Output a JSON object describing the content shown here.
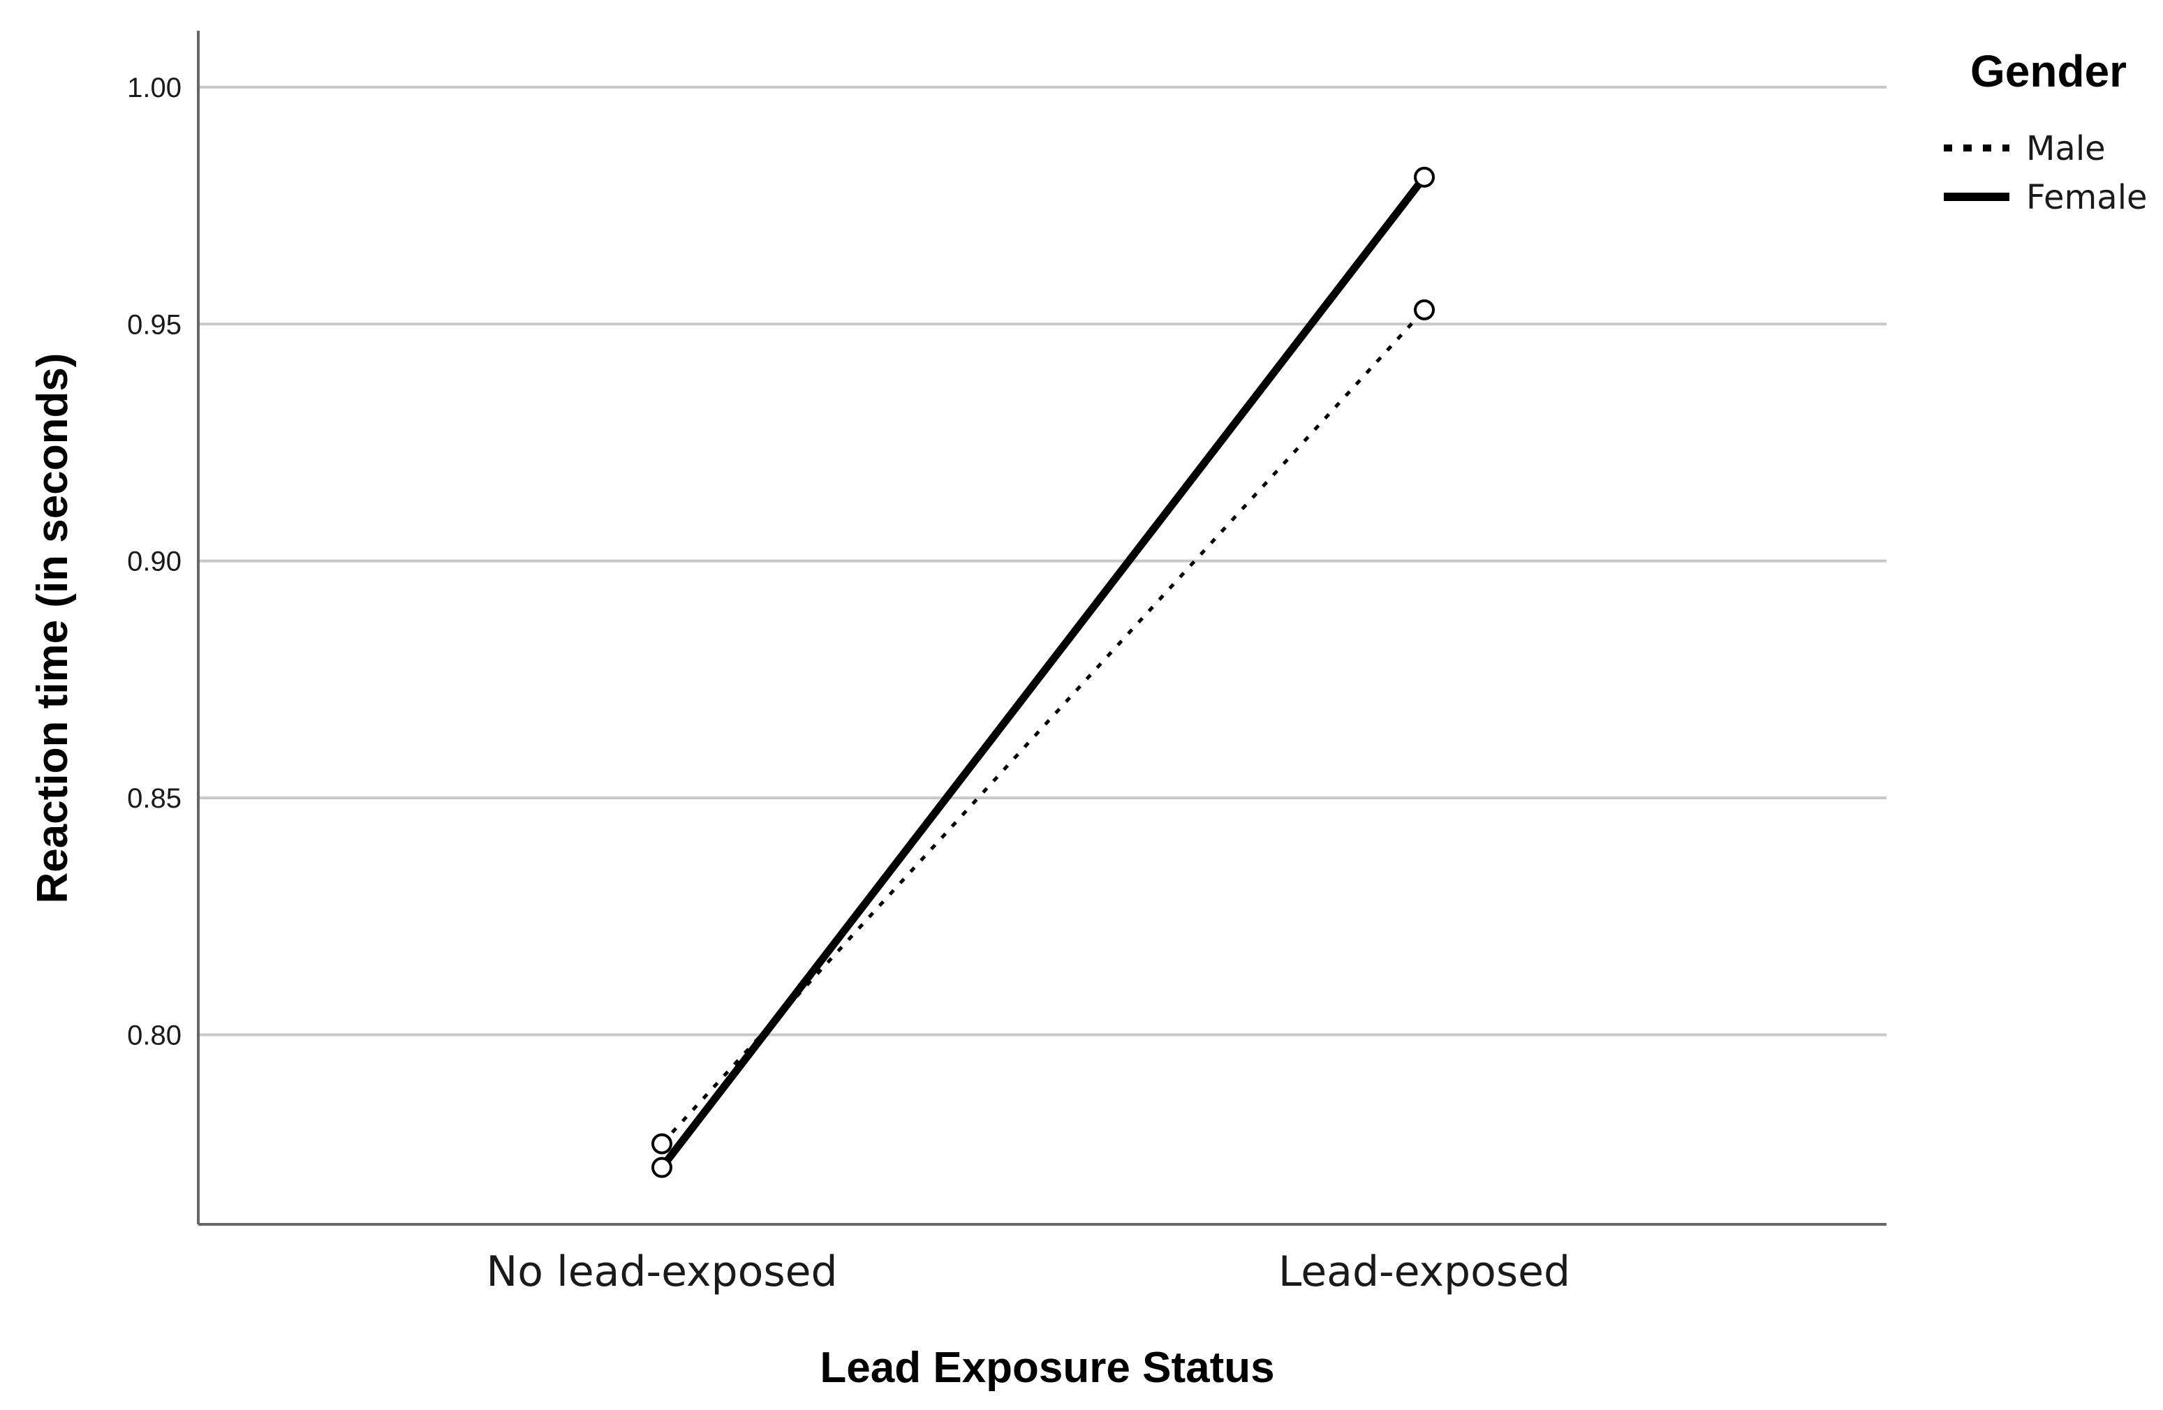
{
  "chart_data": {
    "type": "line",
    "categories": [
      "No lead-exposed",
      "Lead-exposed"
    ],
    "series": [
      {
        "name": "Male",
        "values": [
          0.777,
          0.953
        ],
        "style": "dotted"
      },
      {
        "name": "Female",
        "values": [
          0.772,
          0.981
        ],
        "style": "solid"
      }
    ],
    "xlabel": "Lead Exposure Status",
    "ylabel": "Reaction time (in seconds)",
    "ylim": [
      0.76,
      1.0125
    ],
    "yticks": [
      "0.80",
      "0.85",
      "0.90",
      "0.95",
      "1.00"
    ],
    "grid": true,
    "legend": {
      "title": "Gender",
      "placement": "top-right"
    },
    "colors": {
      "line": "#000000",
      "grid": "#c8c8c8",
      "axis": "#666666",
      "marker_fill": "#ffffff"
    }
  }
}
